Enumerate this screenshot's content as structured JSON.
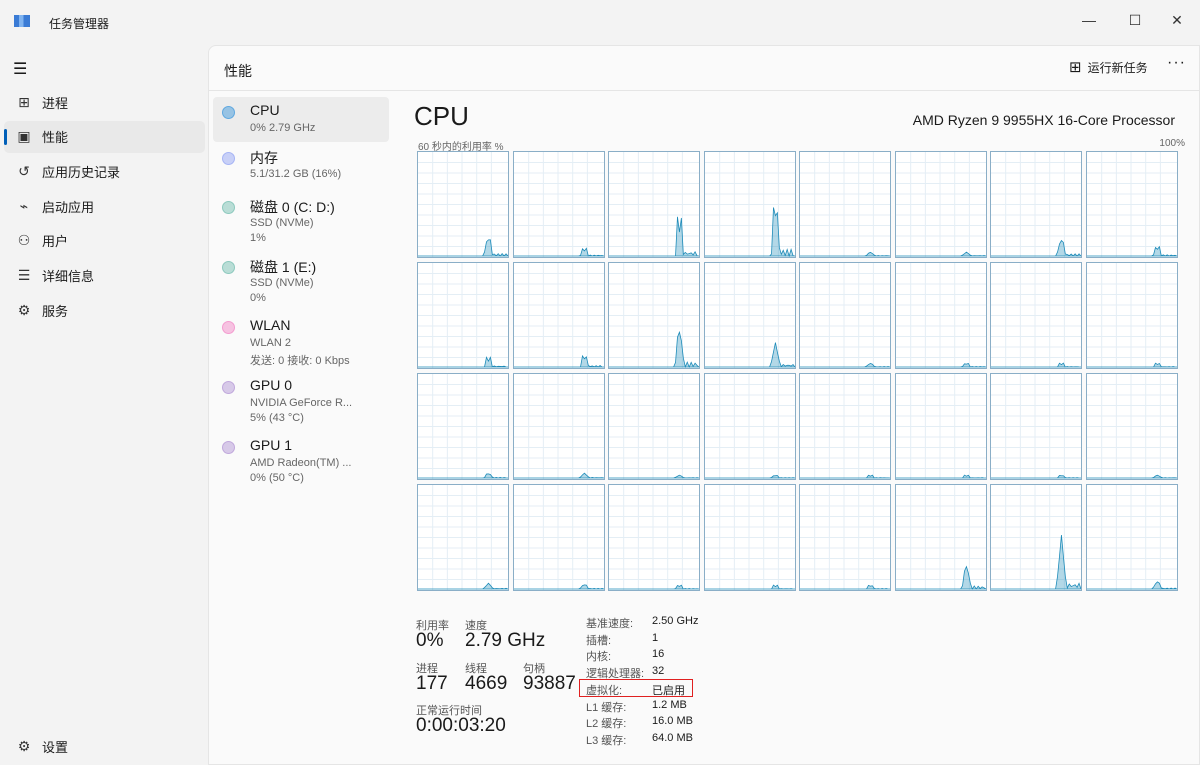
{
  "window": {
    "title": "任务管理器",
    "minimize": "—",
    "maximize": "☐",
    "close": "✕"
  },
  "sidebar": {
    "items": [
      {
        "label": "进程",
        "icon": "processes-icon",
        "glyph": "⊞"
      },
      {
        "label": "性能",
        "icon": "performance-icon",
        "glyph": "▣"
      },
      {
        "label": "应用历史记录",
        "icon": "history-icon",
        "glyph": "↺"
      },
      {
        "label": "启动应用",
        "icon": "startup-icon",
        "glyph": "⌁"
      },
      {
        "label": "用户",
        "icon": "users-icon",
        "glyph": "⚇"
      },
      {
        "label": "详细信息",
        "icon": "details-icon",
        "glyph": "☰"
      },
      {
        "label": "服务",
        "icon": "services-icon",
        "glyph": "⚙"
      }
    ],
    "settings": "设置",
    "settings_glyph": "⚙",
    "menu_glyph": "☰"
  },
  "header": {
    "title": "性能",
    "run_new_task": "运行新任务",
    "run_glyph": "⊞",
    "more": "···"
  },
  "devices": [
    {
      "name": "CPU",
      "lines": [
        "0% 2.79 GHz"
      ],
      "color": "#5fa8e0"
    },
    {
      "name": "内存",
      "lines": [
        "5.1/31.2 GB (16%)"
      ],
      "color": "#a6b4f5"
    },
    {
      "name": "磁盘 0 (C: D:)",
      "lines": [
        "SSD (NVMe)",
        "1%"
      ],
      "color": "#8dc9be"
    },
    {
      "name": "磁盘 1 (E:)",
      "lines": [
        "SSD (NVMe)",
        "0%"
      ],
      "color": "#8dc9be"
    },
    {
      "name": "WLAN",
      "lines": [
        "WLAN 2",
        "发送: 0 接收: 0 Kbps"
      ],
      "color": "#f39cd0"
    },
    {
      "name": "GPU 0",
      "lines": [
        "NVIDIA GeForce R...",
        "5% (43 °C)"
      ],
      "color": "#c0a8dc"
    },
    {
      "name": "GPU 1",
      "lines": [
        "AMD Radeon(TM) ...",
        "0% (50 °C)"
      ],
      "color": "#c0a8dc"
    }
  ],
  "cpu": {
    "title": "CPU",
    "processor": "AMD Ryzen 9 9955HX 16-Core Processor",
    "graph_label": "60 秒内的利用率 %",
    "graph_max": "100%",
    "graph_color": "#1b8ab8",
    "stats": {
      "util_label": "利用率",
      "util": "0%",
      "speed_label": "速度",
      "speed": "2.79 GHz",
      "proc_label": "进程",
      "proc": "177",
      "threads_label": "线程",
      "threads": "4669",
      "handles_label": "句柄",
      "handles": "93887",
      "uptime_label": "正常运行时间",
      "uptime": "0:00:03:20"
    },
    "details": [
      [
        "基准速度:",
        "2.50 GHz"
      ],
      [
        "插槽:",
        "1"
      ],
      [
        "内核:",
        "16"
      ],
      [
        "逻辑处理器:",
        "32"
      ],
      [
        "虚拟化:",
        "已启用"
      ],
      [
        "L1 缓存:",
        "1.2 MB"
      ],
      [
        "L2 缓存:",
        "16.0 MB"
      ],
      [
        "L3 缓存:",
        "64.0 MB"
      ]
    ]
  }
}
